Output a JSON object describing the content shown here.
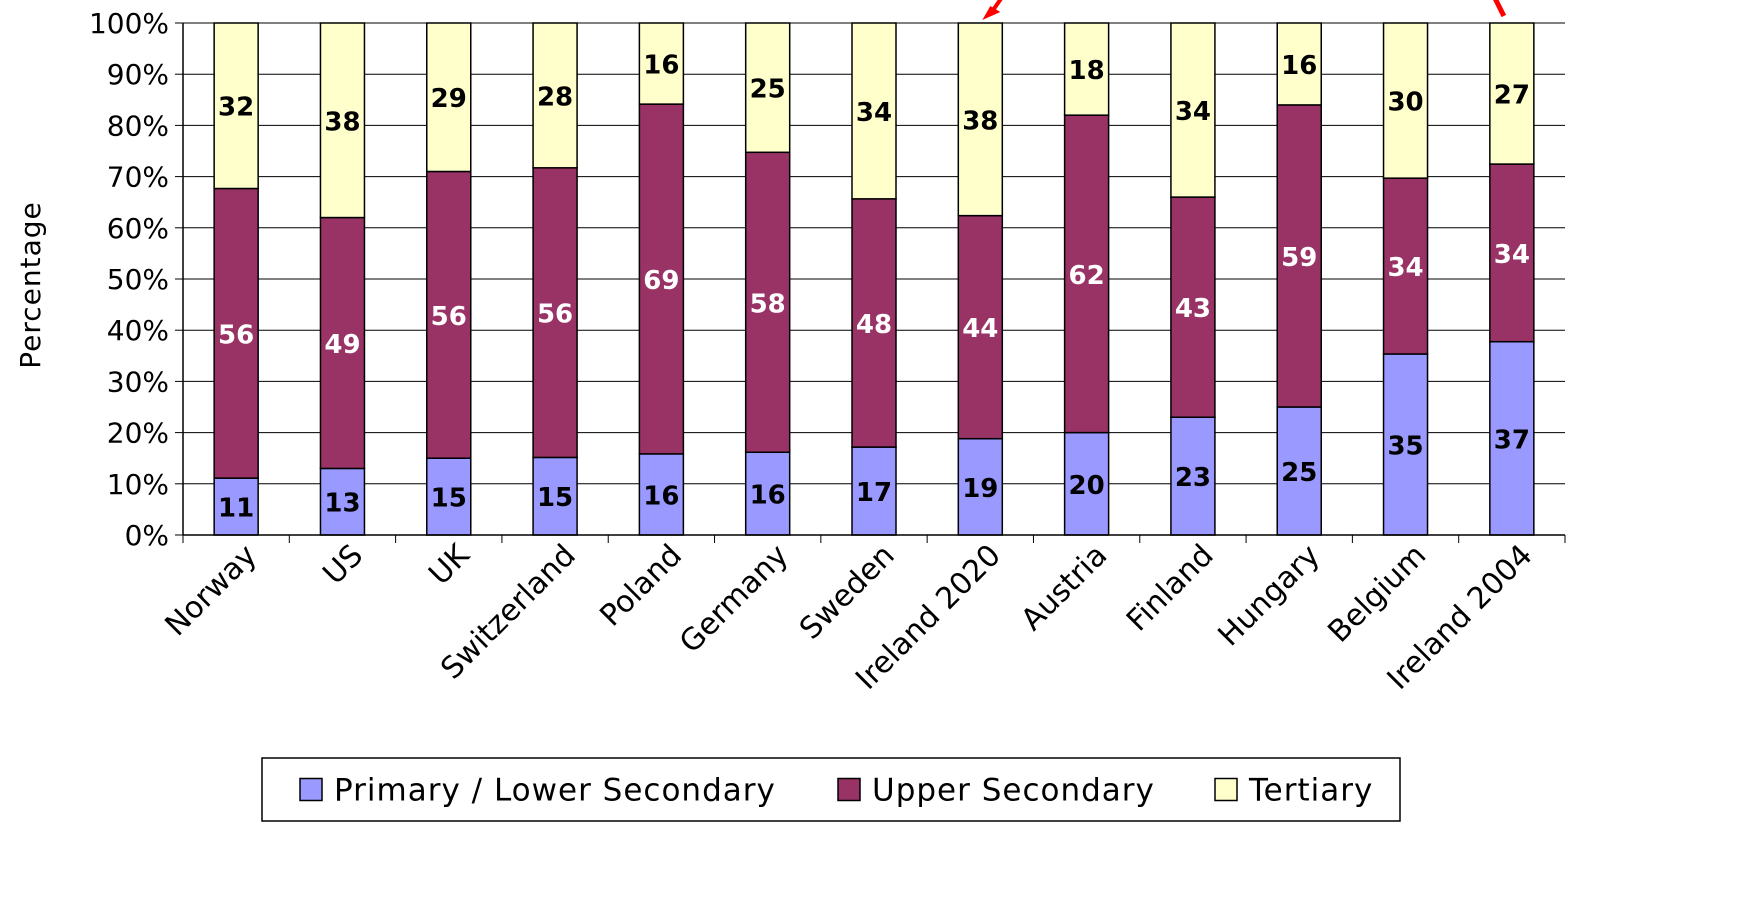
{
  "chart_data": {
    "type": "bar",
    "stacked": true,
    "percent": true,
    "ylabel": "Percentage",
    "ylim": [
      0,
      100
    ],
    "yticks": [
      "0%",
      "10%",
      "20%",
      "30%",
      "40%",
      "50%",
      "60%",
      "70%",
      "80%",
      "90%",
      "100%"
    ],
    "grid": true,
    "legend_position": "bottom",
    "categories": [
      "Norway",
      "US",
      "UK",
      "Switzerland",
      "Poland",
      "Germany",
      "Sweden",
      "Ireland 2020",
      "Austria",
      "Finland",
      "Hungary",
      "Belgium",
      "Ireland 2004"
    ],
    "series": [
      {
        "name": "Primary / Lower Secondary",
        "color": "#9999ff",
        "label_color": "#000000",
        "values": [
          11,
          13,
          15,
          15,
          16,
          16,
          17,
          19,
          20,
          23,
          25,
          35,
          37
        ]
      },
      {
        "name": "Upper Secondary",
        "color": "#993366",
        "label_color": "#ffffff",
        "values": [
          56,
          49,
          56,
          56,
          69,
          58,
          48,
          44,
          62,
          43,
          59,
          34,
          34
        ]
      },
      {
        "name": "Tertiary",
        "color": "#ffffcc",
        "label_color": "#000000",
        "values": [
          32,
          38,
          29,
          28,
          16,
          25,
          34,
          38,
          18,
          34,
          16,
          30,
          27
        ]
      }
    ],
    "arrow_color": "#ff0000"
  }
}
